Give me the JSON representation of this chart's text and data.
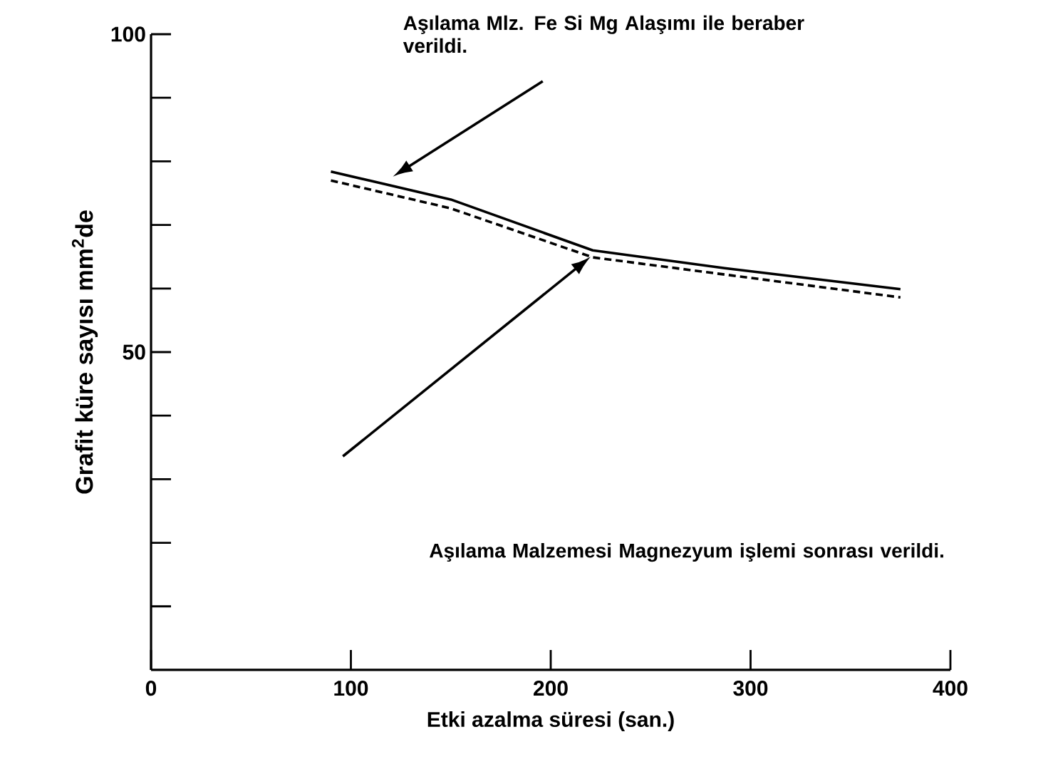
{
  "chart_data": {
    "type": "line",
    "xlabel": "Etki azalma süresi (san.)",
    "ylabel": "Grafit küre sayısı mm$^{2}$de",
    "xlim": [
      0,
      400
    ],
    "ylim": [
      0,
      100
    ],
    "xticks": [
      0,
      100,
      200,
      300,
      400
    ],
    "yticks": [
      {
        "value": 10,
        "label": null
      },
      {
        "value": 20,
        "label": null
      },
      {
        "value": 30,
        "label": null
      },
      {
        "value": 40,
        "label": null
      },
      50,
      {
        "value": 60,
        "label": null
      },
      {
        "value": 70,
        "label": null
      },
      {
        "value": 80,
        "label": null
      },
      {
        "value": 90,
        "label": null
      },
      100
    ],
    "grid": false,
    "marker": "none",
    "series": [
      {
        "color": "#000000",
        "line_style": "solid",
        "x": [
          90,
          150,
          221,
          287,
          375
        ],
        "values": [
          78.4,
          74,
          66,
          63.2,
          59.9
        ]
      },
      {
        "color": "#000000",
        "line_style": "dashed",
        "x": [
          90,
          150,
          221,
          287,
          375
        ],
        "values": [
          77,
          72.6,
          64.9,
          62.2,
          58.6
        ]
      }
    ],
    "annotations": [
      "Aşılama Mlz. Fe Si Mg Alaşımı ile beraber verildi.",
      "Aşılama Malzemesi Magnezyum işlemi sonrası verildi."
    ]
  }
}
